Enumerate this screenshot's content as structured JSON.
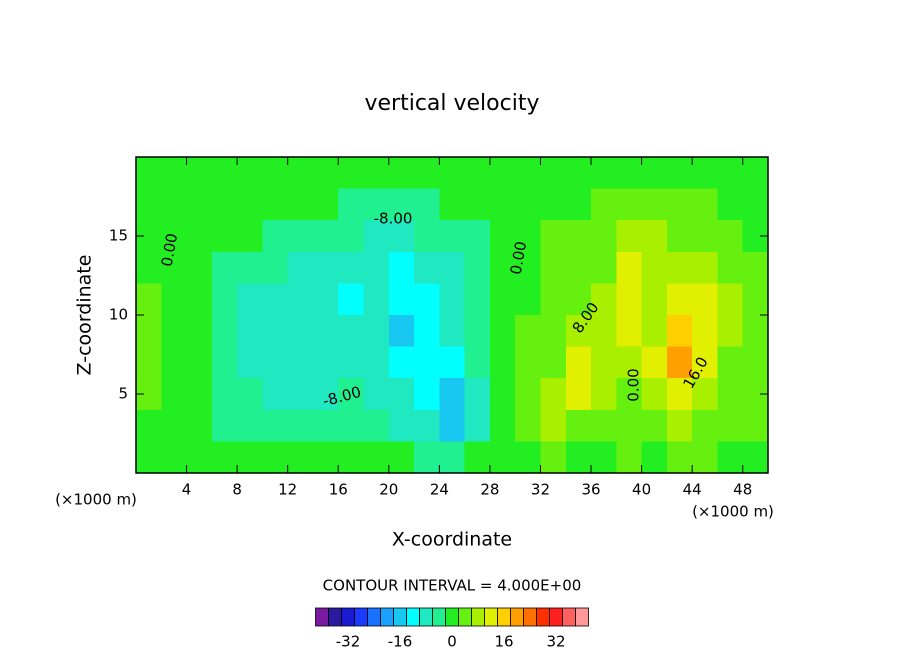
{
  "chart_data": {
    "type": "contour",
    "title": "vertical velocity",
    "x_label": "X-coordinate",
    "y_label": "Z-coordinate",
    "x_unit": "(×1000 m)",
    "y_unit": "(×1000 m)",
    "xlim": [
      0,
      50
    ],
    "ylim": [
      0,
      20
    ],
    "xticks": [
      4,
      8,
      12,
      16,
      20,
      24,
      28,
      32,
      36,
      40,
      44,
      48
    ],
    "yticks": [
      5,
      10,
      15
    ],
    "x": [
      1,
      3,
      5,
      7,
      9,
      11,
      13,
      15,
      17,
      19,
      21,
      23,
      25,
      27,
      29,
      31,
      33,
      35,
      37,
      39,
      41,
      43,
      45,
      47,
      49
    ],
    "z": [
      19,
      17,
      15,
      13,
      11,
      9,
      7,
      5,
      3,
      1
    ],
    "values": [
      [
        0,
        0,
        0,
        0,
        0,
        0,
        0,
        0,
        0,
        0,
        0,
        0,
        0,
        0,
        0,
        0,
        0,
        0,
        0,
        0,
        0,
        0,
        0,
        0,
        0
      ],
      [
        0,
        0,
        0,
        0,
        0,
        0,
        0,
        0,
        -4,
        -4,
        -4,
        -4,
        0,
        0,
        0,
        0,
        0,
        0,
        4,
        4,
        4,
        4,
        4,
        0,
        0
      ],
      [
        0,
        0,
        0,
        0,
        0,
        -4,
        -4,
        -4,
        -4,
        -8,
        -8,
        -4,
        -4,
        -4,
        0,
        0,
        4,
        4,
        4,
        8,
        8,
        4,
        4,
        4,
        0
      ],
      [
        0,
        0,
        0,
        -4,
        -4,
        -4,
        -8,
        -8,
        -8,
        -8,
        -12,
        -8,
        -8,
        -4,
        0,
        0,
        4,
        4,
        4,
        12,
        8,
        8,
        8,
        4,
        4
      ],
      [
        4,
        0,
        0,
        -4,
        -8,
        -8,
        -8,
        -8,
        -12,
        -8,
        -12,
        -12,
        -8,
        -4,
        0,
        0,
        4,
        4,
        8,
        12,
        8,
        12,
        12,
        8,
        4
      ],
      [
        4,
        0,
        0,
        -4,
        -8,
        -8,
        -8,
        -8,
        -8,
        -8,
        -16,
        -12,
        -8,
        -4,
        0,
        4,
        4,
        8,
        8,
        12,
        8,
        16,
        12,
        8,
        4
      ],
      [
        4,
        0,
        0,
        -4,
        -8,
        -8,
        -8,
        -8,
        -8,
        -8,
        -12,
        -12,
        -12,
        -4,
        0,
        4,
        4,
        12,
        8,
        8,
        12,
        20,
        12,
        4,
        4
      ],
      [
        4,
        0,
        0,
        -4,
        -4,
        -8,
        -8,
        -8,
        -4,
        -8,
        -8,
        -12,
        -16,
        -8,
        0,
        4,
        8,
        12,
        8,
        4,
        8,
        12,
        8,
        4,
        4
      ],
      [
        0,
        0,
        0,
        -4,
        -4,
        -4,
        -4,
        -4,
        -4,
        -4,
        -8,
        -8,
        -16,
        -8,
        0,
        4,
        8,
        4,
        4,
        4,
        4,
        8,
        4,
        4,
        4
      ],
      [
        0,
        0,
        0,
        0,
        0,
        0,
        0,
        0,
        0,
        0,
        0,
        -4,
        -4,
        0,
        0,
        0,
        4,
        0,
        0,
        4,
        0,
        4,
        4,
        0,
        0
      ]
    ],
    "contour_labels": [
      "-8.00",
      "0.00",
      "0.00",
      "8.00",
      "16.0",
      "-8.00",
      "0.00"
    ],
    "colorbar": {
      "title": "CONTOUR INTERVAL = 4.000E+00",
      "levels": [
        -40,
        -36,
        -32,
        -28,
        -24,
        -20,
        -16,
        -12,
        -8,
        -4,
        0,
        4,
        8,
        12,
        16,
        20,
        24,
        28,
        32,
        36,
        40
      ],
      "colors": [
        "#7a1aa0",
        "#2a1aa0",
        "#1a1ad0",
        "#1a3aff",
        "#1a70ff",
        "#1aa0ff",
        "#18c8f0",
        "#00ffff",
        "#20e8c0",
        "#20f090",
        "#22ee22",
        "#66f010",
        "#a8f000",
        "#e0f000",
        "#ffd000",
        "#ffa000",
        "#ff7000",
        "#ff3000",
        "#ff2020",
        "#ff6060",
        "#ff9898"
      ],
      "ticks": [
        -32,
        -16,
        0,
        16,
        32
      ]
    }
  }
}
